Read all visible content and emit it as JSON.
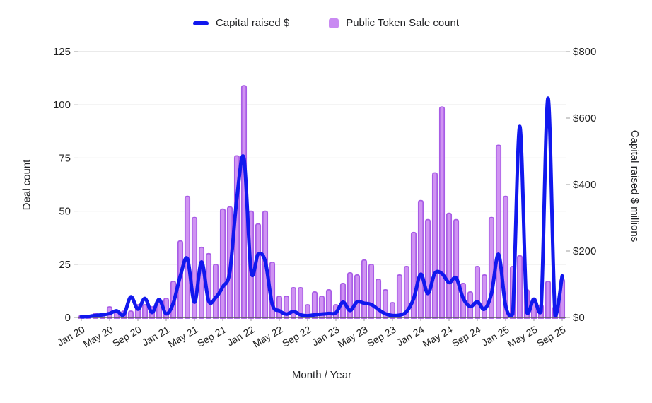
{
  "legend": {
    "items": [
      {
        "label": "Capital raised $",
        "series": "line"
      },
      {
        "label": "Public Token Sale count",
        "series": "bar"
      }
    ]
  },
  "axes": {
    "left": {
      "title": "Deal count",
      "ticks": [
        0,
        25,
        50,
        75,
        100,
        125
      ],
      "max": 125
    },
    "right": {
      "title": "Capital raised $ millions",
      "tick_labels": [
        "$0",
        "$200",
        "$400",
        "$600",
        "$800"
      ],
      "tick_values": [
        0,
        200,
        400,
        600,
        800
      ],
      "max": 800
    },
    "x": {
      "title": "Month / Year",
      "tick_every": 4,
      "tick_labels": [
        "Jan 20",
        "May 20",
        "Sep 20",
        "Jan 21",
        "May 21",
        "Sep 21",
        "Jan 22",
        "May 22",
        "Sep 22",
        "Jan 23",
        "May 23",
        "Sep 23",
        "Jan 24",
        "May 24",
        "Sep 24",
        "Jan 25",
        "May 25",
        "Sep 25"
      ]
    }
  },
  "colors": {
    "line": "#1118ee",
    "bar_fill": "#d093f2",
    "bar_stroke": "#a85ce6",
    "legend_bar_swatch": "#c98af2",
    "grid": "#d6d6d6",
    "baseline": "#5f5f5f",
    "tick": "#9e9e9e",
    "text": "#1f1f1f"
  },
  "chart_data": {
    "type": "bar+line (dual axis)",
    "grid": "horizontal",
    "legend_position": "top",
    "x_axis": {
      "label": "Month / Year"
    },
    "left_axis": {
      "label": "Deal count",
      "range": [
        0,
        125
      ]
    },
    "right_axis": {
      "label": "Capital raised $ millions",
      "range": [
        0,
        800
      ]
    },
    "categories": [
      "Jan 20",
      "Feb 20",
      "Mar 20",
      "Apr 20",
      "May 20",
      "Jun 20",
      "Jul 20",
      "Aug 20",
      "Sep 20",
      "Oct 20",
      "Nov 20",
      "Dec 20",
      "Jan 21",
      "Feb 21",
      "Mar 21",
      "Apr 21",
      "May 21",
      "Jun 21",
      "Jul 21",
      "Aug 21",
      "Sep 21",
      "Oct 21",
      "Nov 21",
      "Dec 21",
      "Jan 22",
      "Feb 22",
      "Mar 22",
      "Apr 22",
      "May 22",
      "Jun 22",
      "Jul 22",
      "Aug 22",
      "Sep 22",
      "Oct 22",
      "Nov 22",
      "Dec 22",
      "Jan 23",
      "Feb 23",
      "Mar 23",
      "Apr 23",
      "May 23",
      "Jun 23",
      "Jul 23",
      "Aug 23",
      "Sep 23",
      "Oct 23",
      "Nov 23",
      "Dec 23",
      "Jan 24",
      "Feb 24",
      "Mar 24",
      "Apr 24",
      "May 24",
      "Jun 24",
      "Jul 24",
      "Aug 24",
      "Sep 24",
      "Oct 24",
      "Nov 24",
      "Dec 24",
      "Jan 25",
      "Feb 25",
      "Mar 25",
      "Apr 25",
      "May 25",
      "Jun 25",
      "Jul 25",
      "Aug 25",
      "Sep 25"
    ],
    "series": [
      {
        "name": "Public Token Sale count",
        "type": "bar",
        "axis": "left",
        "values": [
          1,
          1,
          2,
          2,
          5,
          3,
          3,
          3,
          6,
          6,
          5,
          8,
          9,
          17,
          36,
          57,
          47,
          33,
          30,
          25,
          51,
          52,
          76,
          109,
          50,
          44,
          50,
          26,
          10,
          10,
          14,
          14,
          6,
          12,
          10,
          13,
          6,
          16,
          21,
          20,
          27,
          25,
          18,
          13,
          7,
          20,
          24,
          40,
          55,
          46,
          68,
          99,
          49,
          46,
          16,
          12,
          24,
          20,
          47,
          81,
          57,
          24,
          29,
          13,
          9,
          6,
          17,
          5,
          18
        ]
      },
      {
        "name": "Capital raised $",
        "type": "line",
        "axis": "right",
        "unit": "$ millions",
        "values": [
          2,
          3,
          6,
          8,
          12,
          20,
          8,
          62,
          25,
          57,
          15,
          54,
          11,
          43,
          125,
          177,
          46,
          167,
          50,
          60,
          92,
          138,
          360,
          478,
          140,
          190,
          170,
          40,
          20,
          10,
          18,
          8,
          5,
          8,
          10,
          12,
          14,
          46,
          21,
          47,
          43,
          39,
          24,
          11,
          6,
          7,
          18,
          57,
          130,
          72,
          133,
          132,
          105,
          119,
          58,
          33,
          47,
          25,
          72,
          190,
          35,
          10,
          575,
          15,
          55,
          18,
          660,
          5,
          125
        ]
      }
    ]
  }
}
